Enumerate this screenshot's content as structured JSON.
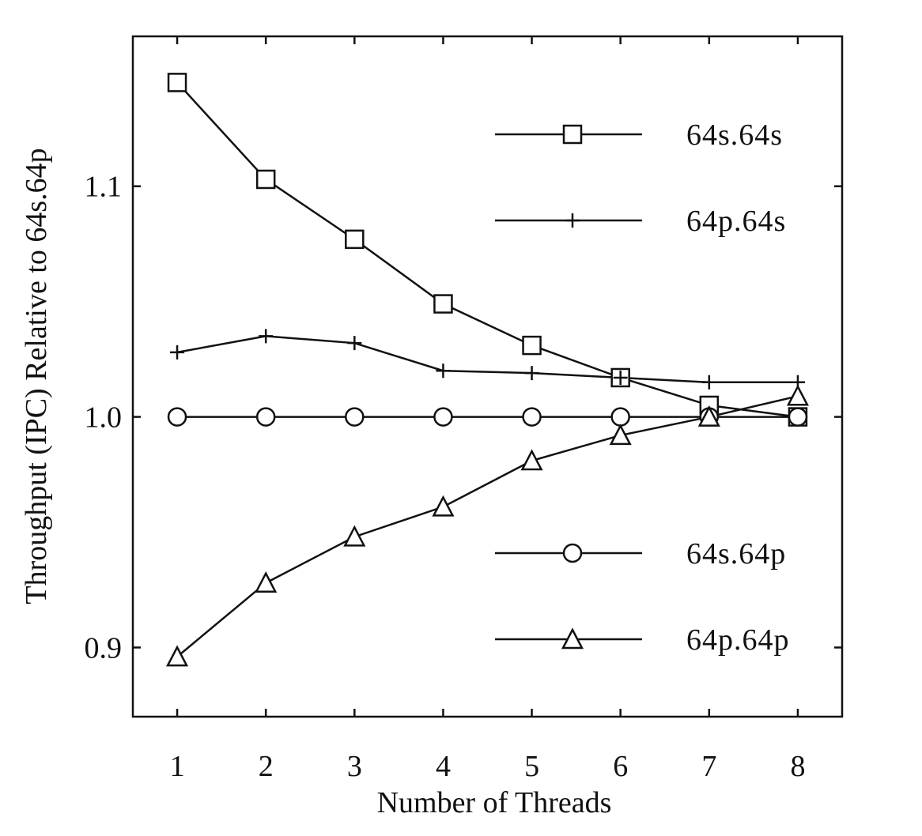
{
  "chart_data": {
    "type": "line",
    "xlabel": "Number of Threads",
    "ylabel": "Throughput (IPC) Relative to 64s.64p",
    "x": [
      1,
      2,
      3,
      4,
      5,
      6,
      7,
      8
    ],
    "xlim": [
      0.5,
      8.5
    ],
    "ylim": [
      0.87,
      1.165
    ],
    "x_ticks": [
      "1",
      "2",
      "3",
      "4",
      "5",
      "6",
      "7",
      "8"
    ],
    "y_ticks": [
      {
        "value": 0.9,
        "label": "0.9"
      },
      {
        "value": 1.0,
        "label": "1.0"
      },
      {
        "value": 1.1,
        "label": "1.1"
      }
    ],
    "grid": false,
    "series": [
      {
        "name": "64s.64s",
        "marker": "square",
        "values": [
          1.145,
          1.103,
          1.077,
          1.049,
          1.031,
          1.017,
          1.005,
          1.0
        ]
      },
      {
        "name": "64p.64s",
        "marker": "plus",
        "values": [
          1.028,
          1.035,
          1.032,
          1.02,
          1.019,
          1.017,
          1.015,
          1.015
        ]
      },
      {
        "name": "64s.64p",
        "marker": "circle",
        "values": [
          1.0,
          1.0,
          1.0,
          1.0,
          1.0,
          1.0,
          1.0,
          1.0
        ]
      },
      {
        "name": "64p.64p",
        "marker": "triangle",
        "values": [
          0.896,
          0.928,
          0.948,
          0.961,
          0.981,
          0.992,
          1.0,
          1.009
        ]
      }
    ],
    "legend": [
      {
        "series": "64s.64s",
        "position": "upper"
      },
      {
        "series": "64p.64s",
        "position": "upper"
      },
      {
        "series": "64s.64p",
        "position": "lower"
      },
      {
        "series": "64p.64p",
        "position": "lower"
      }
    ]
  }
}
